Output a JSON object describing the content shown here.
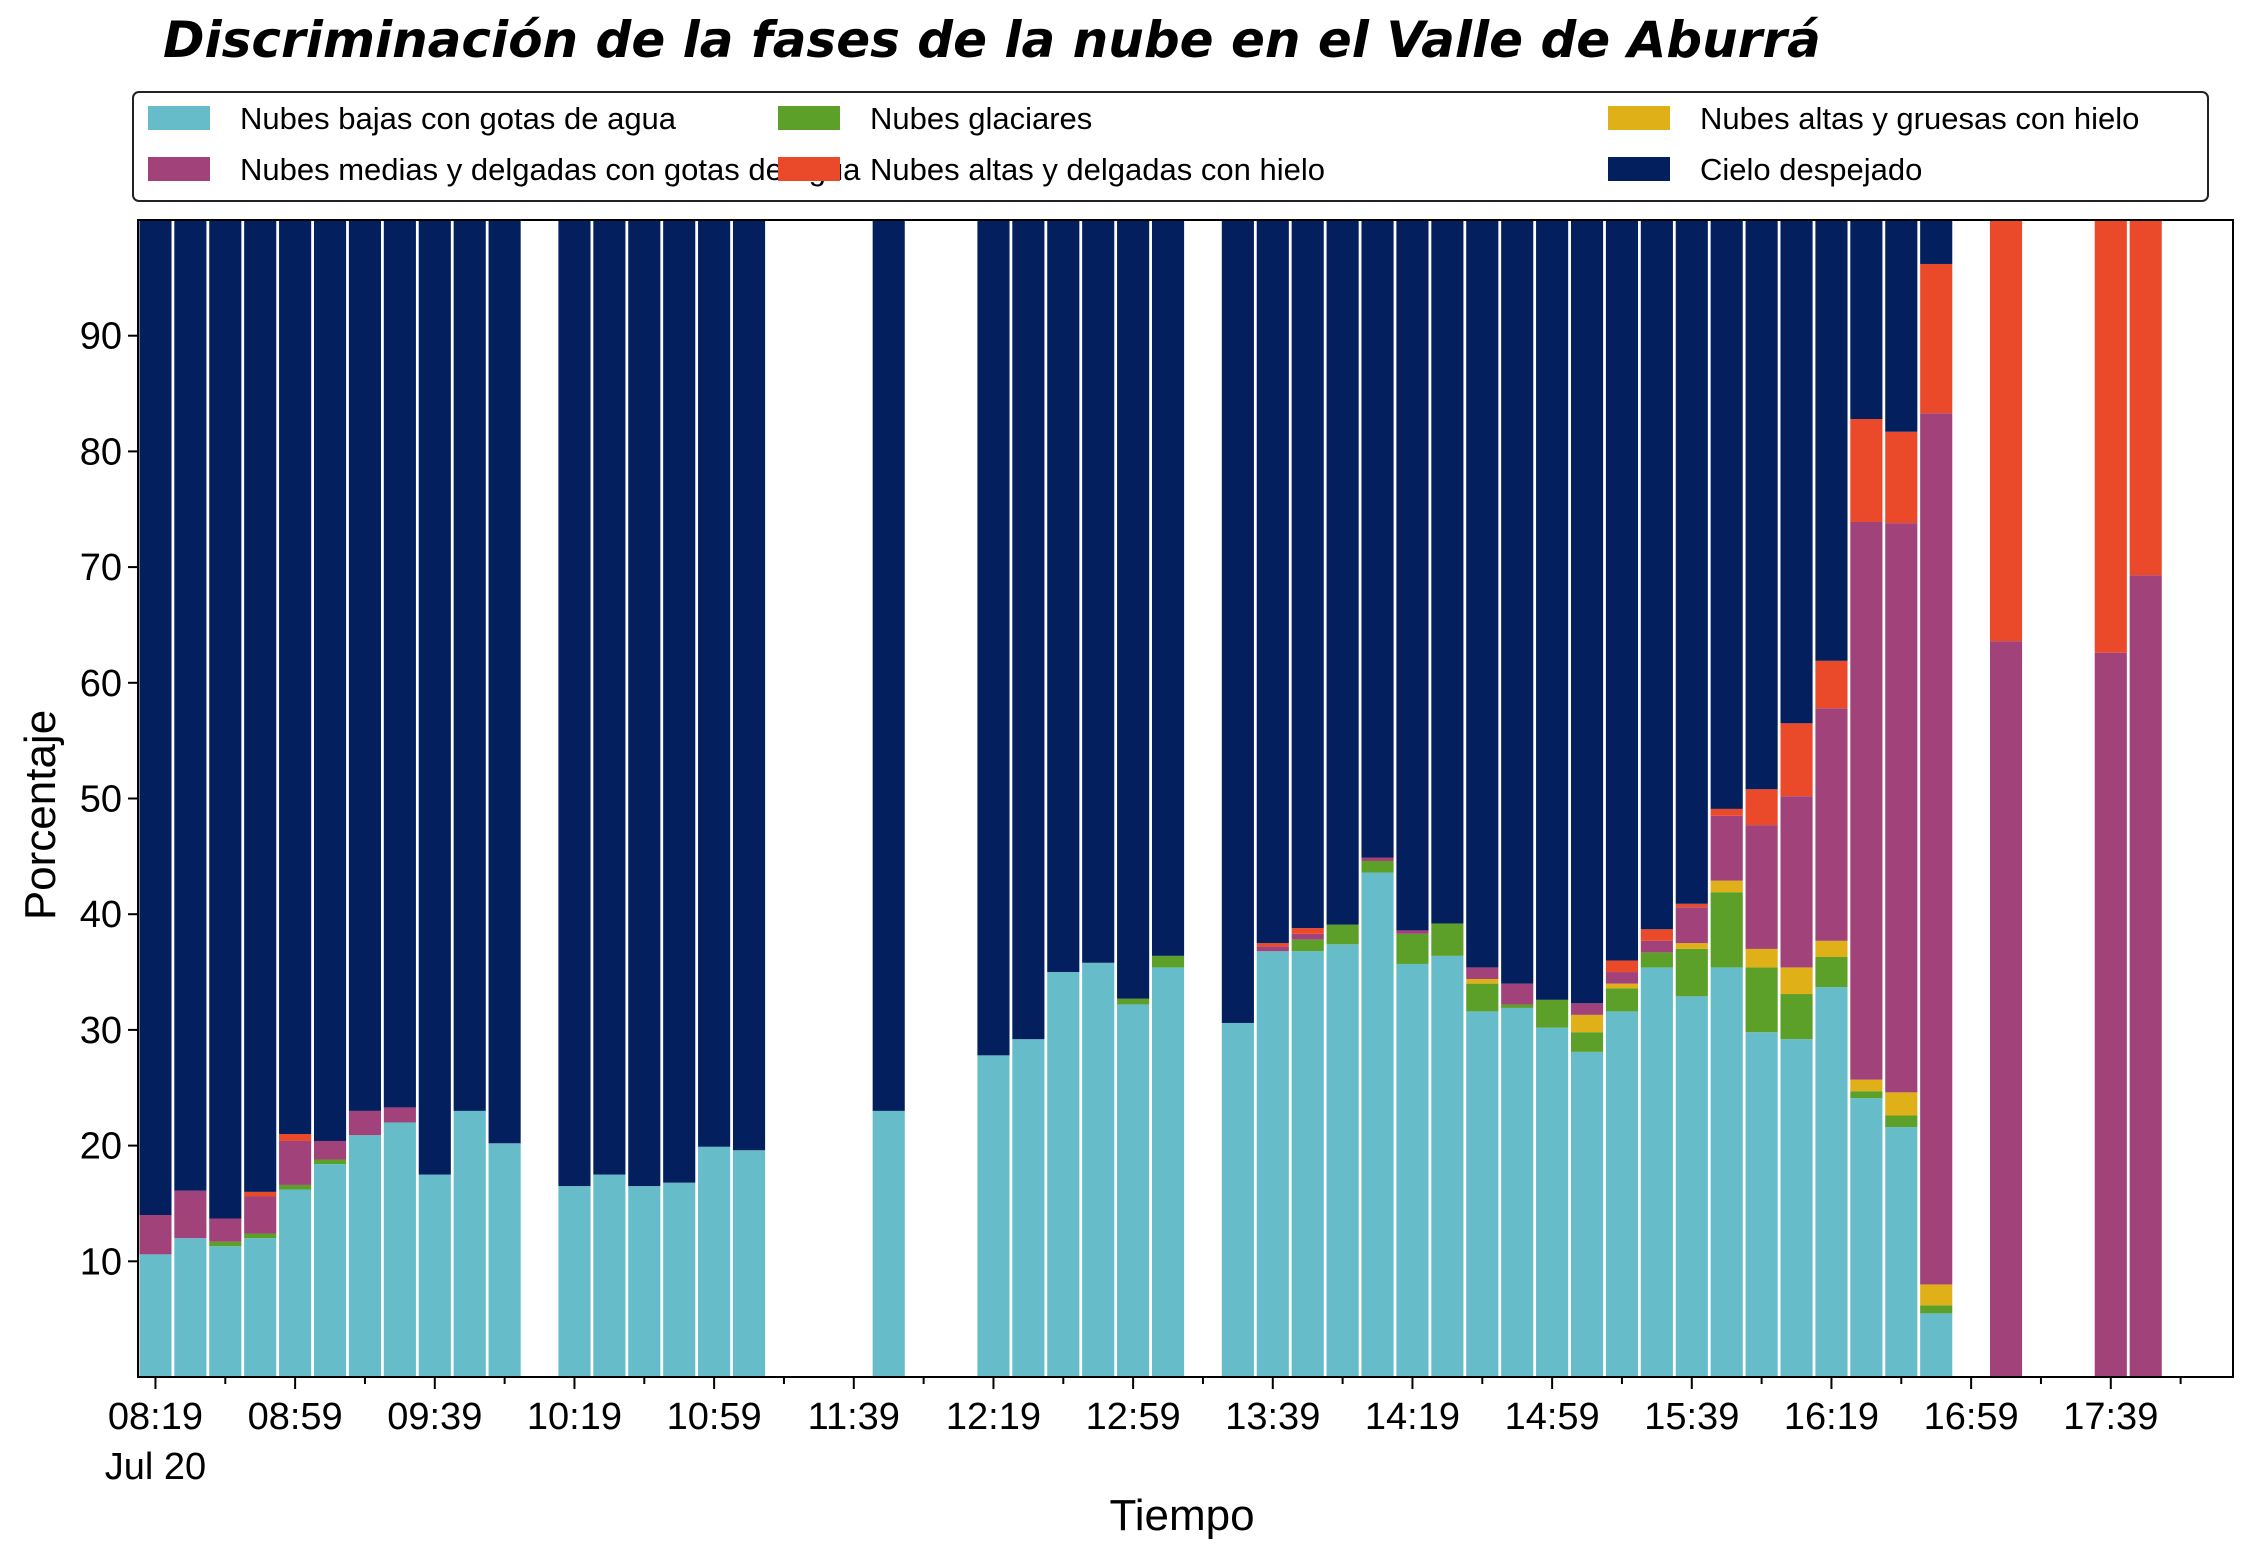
{
  "chart_data": {
    "type": "bar",
    "stacked": true,
    "title": "Discriminación de la fases de la nube en el Valle de Aburrá",
    "xlabel": "Tiempo",
    "ylabel": "Porcentaje",
    "ylim": [
      0,
      100
    ],
    "yticks": [
      10,
      20,
      30,
      40,
      50,
      60,
      70,
      80,
      90
    ],
    "xlim": [
      "08:14",
      "18:14"
    ],
    "x_major_ticks": [
      "08:19",
      "08:59",
      "09:39",
      "10:19",
      "10:59",
      "11:39",
      "12:19",
      "12:59",
      "13:39",
      "14:19",
      "14:59",
      "15:39",
      "16:19",
      "16:59",
      "17:39"
    ],
    "x_minor_ticks": [
      "08:39",
      "09:19",
      "09:59",
      "10:39",
      "11:19",
      "11:59",
      "12:39",
      "13:19",
      "13:59",
      "14:39",
      "15:19",
      "15:59",
      "16:39",
      "17:19",
      "17:59"
    ],
    "x_date_label": "Jul 20",
    "grid": false,
    "legend_position": "top",
    "legend_columns": 3,
    "colors": {
      "Nubes bajas con gotas de agua": "#66bdc9",
      "Nubes glaciares": "#5c9f29",
      "Nubes altas y gruesas con hielo": "#e0b019",
      "Nubes medias y delgadas con gotas de agua": "#a1437a",
      "Nubes altas y delgadas con hielo": "#ea4a2a",
      "Cielo despejado": "#041f5e"
    },
    "series_order": [
      "Nubes bajas con gotas de agua",
      "Nubes glaciares",
      "Nubes altas y gruesas con hielo",
      "Nubes medias y delgadas con gotas de agua",
      "Nubes altas y delgadas con hielo",
      "Cielo despejado"
    ],
    "legend_order": [
      "Nubes bajas con gotas de agua",
      "Nubes glaciares",
      "Nubes altas y gruesas con hielo",
      "Nubes medias y delgadas con gotas de agua",
      "Nubes altas y delgadas con hielo",
      "Cielo despejado"
    ],
    "x": [
      "08:19",
      "08:29",
      "08:39",
      "08:49",
      "08:59",
      "09:09",
      "09:19",
      "09:29",
      "09:39",
      "09:49",
      "09:59",
      "10:19",
      "10:29",
      "10:39",
      "10:49",
      "10:59",
      "11:09",
      "11:49",
      "12:19",
      "12:29",
      "12:39",
      "12:49",
      "12:59",
      "13:09",
      "13:29",
      "13:39",
      "13:49",
      "13:59",
      "14:09",
      "14:19",
      "14:29",
      "14:39",
      "14:49",
      "14:59",
      "15:09",
      "15:19",
      "15:29",
      "15:39",
      "15:49",
      "15:59",
      "16:09",
      "16:19",
      "16:29",
      "16:39",
      "16:49",
      "16:59",
      "17:09",
      "17:19",
      "17:29",
      "17:39",
      "17:49"
    ],
    "series": [
      {
        "name": "Nubes bajas con gotas de agua",
        "values": [
          10.6,
          12.0,
          11.3,
          12.0,
          16.2,
          18.4,
          20.9,
          22.0,
          17.5,
          23.0,
          20.2,
          16.5,
          17.5,
          16.5,
          16.8,
          19.9,
          19.6,
          23.0,
          27.8,
          29.2,
          35.0,
          35.8,
          32.2,
          35.4,
          30.6,
          36.8,
          36.8,
          37.4,
          43.6,
          35.7,
          36.4,
          31.6,
          31.9,
          30.2,
          28.1,
          31.6,
          35.4,
          32.9,
          35.4,
          29.8,
          29.2,
          33.7,
          24.1,
          21.6,
          5.5,
          0,
          0,
          0,
          0,
          0,
          0
        ]
      },
      {
        "name": "Nubes glaciares",
        "values": [
          0,
          0,
          0.4,
          0.4,
          0.4,
          0.4,
          0,
          0,
          0,
          0,
          0,
          0,
          0,
          0,
          0,
          0,
          0,
          0,
          0,
          0,
          0,
          0,
          0.5,
          1.0,
          0,
          0,
          1.0,
          1.7,
          1.0,
          2.6,
          2.8,
          2.4,
          0.3,
          2.4,
          1.7,
          2.0,
          1.3,
          4.1,
          6.5,
          5.6,
          3.9,
          2.6,
          0.6,
          1.0,
          0.7,
          0,
          0,
          0,
          0,
          0,
          0
        ]
      },
      {
        "name": "Nubes altas y gruesas con hielo",
        "values": [
          0,
          0,
          0,
          0,
          0,
          0,
          0,
          0,
          0,
          0,
          0,
          0,
          0,
          0,
          0,
          0,
          0,
          0,
          0,
          0,
          0,
          0,
          0,
          0,
          0,
          0,
          0,
          0,
          0,
          0,
          0,
          0.4,
          0,
          0,
          1.5,
          0.4,
          0,
          0.5,
          1.0,
          1.6,
          2.3,
          1.4,
          1.0,
          2.0,
          1.8,
          0,
          0,
          0,
          0,
          0,
          0
        ]
      },
      {
        "name": "Nubes medias y delgadas con gotas de agua",
        "values": [
          3.4,
          4.1,
          2.0,
          3.2,
          3.8,
          1.6,
          2.1,
          1.3,
          0,
          0,
          0,
          0,
          0,
          0,
          0,
          0,
          0,
          0,
          0,
          0,
          0,
          0,
          0,
          0,
          0,
          0.4,
          0.5,
          0,
          0.3,
          0.3,
          0,
          1.0,
          1.8,
          0,
          1.0,
          1.0,
          1.0,
          3.1,
          5.6,
          10.7,
          14.8,
          20.1,
          48.2,
          49.2,
          75.3,
          0,
          63.6,
          0,
          0,
          62.6,
          69.3
        ]
      },
      {
        "name": "Nubes altas y delgadas con hielo",
        "values": [
          0,
          0,
          0,
          0.4,
          0.6,
          0,
          0,
          0,
          0,
          0,
          0,
          0,
          0,
          0,
          0,
          0,
          0,
          0,
          0,
          0,
          0,
          0,
          0,
          0,
          0,
          0.3,
          0.5,
          0,
          0,
          0,
          0,
          0,
          0,
          0,
          0,
          1.0,
          1.0,
          0.3,
          0.6,
          3.1,
          6.3,
          4.1,
          8.9,
          7.9,
          12.9,
          0,
          36.4,
          0,
          0,
          37.4,
          30.7
        ]
      },
      {
        "name": "Cielo despejado",
        "values": [
          86.0,
          83.9,
          86.3,
          84.0,
          79.0,
          79.6,
          77.0,
          76.7,
          82.5,
          77.0,
          79.8,
          83.5,
          82.5,
          83.5,
          83.2,
          80.1,
          80.4,
          77.0,
          72.2,
          70.8,
          65.0,
          64.2,
          67.3,
          63.6,
          69.4,
          62.5,
          61.2,
          60.9,
          55.1,
          61.4,
          60.8,
          64.6,
          66.0,
          67.4,
          67.7,
          64.0,
          61.3,
          59.1,
          50.9,
          49.2,
          43.5,
          38.1,
          17.2,
          18.3,
          3.8,
          0,
          0,
          0,
          0,
          0,
          0
        ]
      }
    ]
  }
}
